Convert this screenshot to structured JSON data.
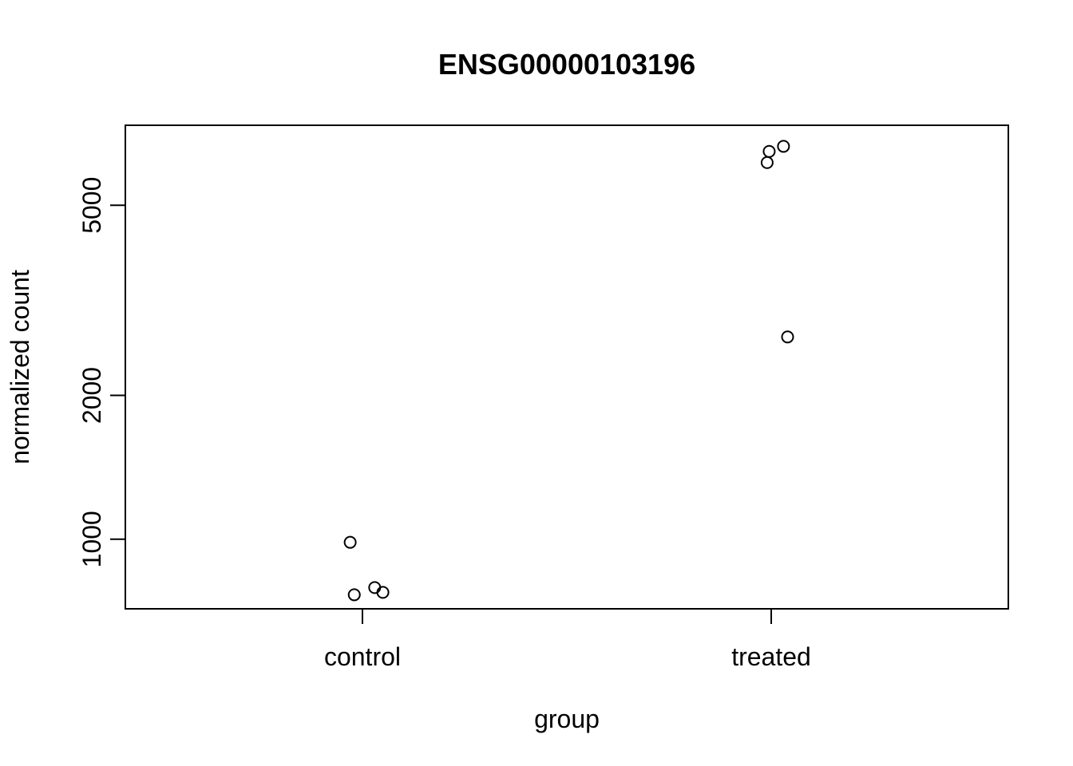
{
  "chart_data": {
    "type": "scatter",
    "title": "ENSG00000103196",
    "xlabel": "group",
    "ylabel": "normalized count",
    "y_scale": "log",
    "ylim": [
      715,
      7350
    ],
    "categories": [
      "control",
      "treated"
    ],
    "y_ticks": [
      1000,
      2000,
      5000
    ],
    "points": [
      {
        "group": "control",
        "jitter": -0.03,
        "y": 985
      },
      {
        "group": "control",
        "jitter": -0.02,
        "y": 765
      },
      {
        "group": "control",
        "jitter": 0.03,
        "y": 792
      },
      {
        "group": "control",
        "jitter": 0.05,
        "y": 774
      },
      {
        "group": "treated",
        "jitter": -0.01,
        "y": 6140
      },
      {
        "group": "treated",
        "jitter": -0.005,
        "y": 6480
      },
      {
        "group": "treated",
        "jitter": 0.03,
        "y": 6640
      },
      {
        "group": "treated",
        "jitter": 0.04,
        "y": 2650
      }
    ]
  }
}
